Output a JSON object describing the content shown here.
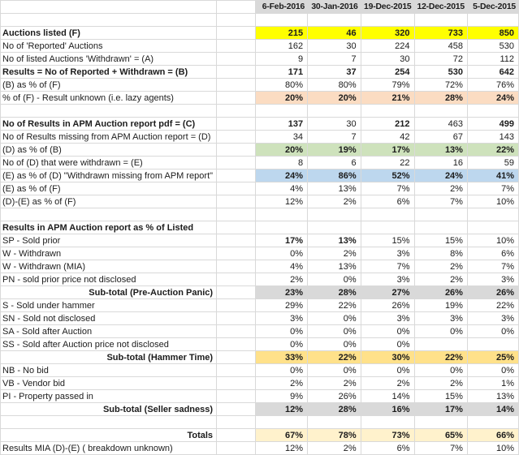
{
  "colors": {
    "yellow": "#FFFF00",
    "peach": "#FBDCC2",
    "green": "#CEE2BC",
    "blue": "#BDD7EE",
    "gray": "#D9D9D9",
    "gold": "#FFE18A",
    "cream": "#FFF2CC",
    "header": "#D9D9D9"
  },
  "table": {
    "date_columns": [
      "6-Feb-2016",
      "30-Jan-2016",
      "19-Dec-2015",
      "12-Dec-2015",
      "5-Dec-2015"
    ],
    "rows": [
      {
        "label": "",
        "values": [
          "",
          "",
          "",
          "",
          ""
        ],
        "spacer": true
      },
      {
        "label": "Auctions listed (F)",
        "label_bold": true,
        "values": [
          "215",
          "46",
          "320",
          "733",
          "850"
        ],
        "values_bold": true,
        "fill": "yellow"
      },
      {
        "label": "No of 'Reported' Auctions",
        "values": [
          "162",
          "30",
          "224",
          "458",
          "530"
        ]
      },
      {
        "label": "No of listed Auctions 'Withdrawn' = (A)",
        "values": [
          "9",
          "7",
          "30",
          "72",
          "112"
        ]
      },
      {
        "label": "Results = No of Reported + Withdrawn = (B)",
        "label_bold": true,
        "values": [
          "171",
          "37",
          "254",
          "530",
          "642"
        ],
        "values_bold": true
      },
      {
        "label": "(B) as % of (F)",
        "values": [
          "80%",
          "80%",
          "79%",
          "72%",
          "76%"
        ]
      },
      {
        "label": "% of (F) - Result unknown (i.e. lazy agents)",
        "values": [
          "20%",
          "20%",
          "21%",
          "28%",
          "24%"
        ],
        "values_bold": true,
        "fill": "peach"
      },
      {
        "label": "",
        "values": [
          "",
          "",
          "",
          "",
          ""
        ],
        "spacer": true
      },
      {
        "label": "No of Results in APM Auction report pdf = (C)",
        "label_bold": true,
        "values": [
          "137",
          "30",
          "212",
          "463",
          "499"
        ],
        "values_bold": [
          true,
          false,
          true,
          false,
          true
        ]
      },
      {
        "label": "No of Results missing from APM Auction report = (D)",
        "values": [
          "34",
          "7",
          "42",
          "67",
          "143"
        ]
      },
      {
        "label": "(D) as % of (B)",
        "values": [
          "20%",
          "19%",
          "17%",
          "13%",
          "22%"
        ],
        "values_bold": true,
        "fill": "green"
      },
      {
        "label": "No of (D) that were withdrawn = (E)",
        "values": [
          "8",
          "6",
          "22",
          "16",
          "59"
        ]
      },
      {
        "label": "(E) as % of (D) \"Withdrawn missing from APM report\"",
        "values": [
          "24%",
          "86%",
          "52%",
          "24%",
          "41%"
        ],
        "values_bold": true,
        "fill": "blue"
      },
      {
        "label": "(E) as % of (F)",
        "values": [
          "4%",
          "13%",
          "7%",
          "2%",
          "7%"
        ]
      },
      {
        "label": "(D)-(E) as % of (F)",
        "values": [
          "12%",
          "2%",
          "6%",
          "7%",
          "10%"
        ]
      },
      {
        "label": "",
        "values": [
          "",
          "",
          "",
          "",
          ""
        ],
        "spacer": true
      },
      {
        "label": "Results in APM Auction report as % of Listed",
        "label_bold": true,
        "values": [
          "",
          "",
          "",
          "",
          ""
        ]
      },
      {
        "label": "SP - Sold prior",
        "values": [
          "17%",
          "13%",
          "15%",
          "15%",
          "10%"
        ],
        "values_bold": [
          true,
          true,
          false,
          false,
          false
        ]
      },
      {
        "label": "W - Withdrawn",
        "values": [
          "0%",
          "2%",
          "3%",
          "8%",
          "6%"
        ]
      },
      {
        "label": "W - Withdrawn (MIA)",
        "values": [
          "4%",
          "13%",
          "7%",
          "2%",
          "7%"
        ]
      },
      {
        "label": "PN - sold prior price not disclosed",
        "values": [
          "2%",
          "0%",
          "3%",
          "2%",
          "3%"
        ]
      },
      {
        "label": "Sub-total (Pre-Auction Panic)",
        "label_bold": true,
        "label_align": "right",
        "values": [
          "23%",
          "28%",
          "27%",
          "26%",
          "26%"
        ],
        "values_bold": true,
        "fill": "gray"
      },
      {
        "label": "S - Sold under hammer",
        "values": [
          "29%",
          "22%",
          "26%",
          "19%",
          "22%"
        ]
      },
      {
        "label": "SN - Sold not disclosed",
        "values": [
          "3%",
          "0%",
          "3%",
          "3%",
          "3%"
        ]
      },
      {
        "label": "SA - Sold after Auction",
        "values": [
          "0%",
          "0%",
          "0%",
          "0%",
          "0%"
        ]
      },
      {
        "label": "SS - Sold after Auction price not disclosed",
        "values": [
          "0%",
          "0%",
          "0%",
          "",
          ""
        ]
      },
      {
        "label": "Sub-total (Hammer Time)",
        "label_bold": true,
        "label_align": "right",
        "values": [
          "33%",
          "22%",
          "30%",
          "22%",
          "25%"
        ],
        "values_bold": true,
        "fill": "gold"
      },
      {
        "label": "NB - No bid",
        "values": [
          "0%",
          "0%",
          "0%",
          "0%",
          "0%"
        ]
      },
      {
        "label": "VB - Vendor bid",
        "values": [
          "2%",
          "2%",
          "2%",
          "2%",
          "1%"
        ]
      },
      {
        "label": "PI - Property passed in",
        "values": [
          "9%",
          "26%",
          "14%",
          "15%",
          "13%"
        ]
      },
      {
        "label": "Sub-total (Seller sadness)",
        "label_bold": true,
        "label_align": "right",
        "values": [
          "12%",
          "28%",
          "16%",
          "17%",
          "14%"
        ],
        "values_bold": true,
        "fill": "gray"
      },
      {
        "label": "",
        "values": [
          "",
          "",
          "",
          "",
          ""
        ],
        "spacer": true
      },
      {
        "label": "Totals",
        "label_bold": true,
        "label_align": "right",
        "values": [
          "67%",
          "78%",
          "73%",
          "65%",
          "66%"
        ],
        "values_bold": true,
        "fill": "cream"
      },
      {
        "label": "Results MIA (D)-(E) ( breakdown unknown)",
        "values": [
          "12%",
          "2%",
          "6%",
          "7%",
          "10%"
        ]
      }
    ]
  }
}
